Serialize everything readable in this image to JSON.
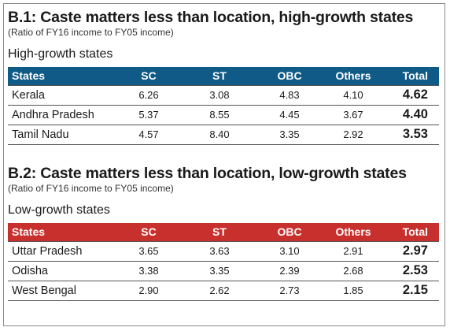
{
  "header_columns": [
    "States",
    "SC",
    "ST",
    "OBC",
    "Others",
    "Total"
  ],
  "section1": {
    "title": "B.1: Caste matters less than location, high-growth states",
    "subtitle": "(Ratio of FY16 income to FY05 income)",
    "group": "High-growth states",
    "header_color": "#0f5a86",
    "rows": [
      {
        "state": "Kerala",
        "sc": "6.26",
        "st": "3.08",
        "obc": "4.83",
        "others": "4.10",
        "total": "4.62"
      },
      {
        "state": "Andhra Pradesh",
        "sc": "5.37",
        "st": "8.55",
        "obc": "4.45",
        "others": "3.67",
        "total": "4.40"
      },
      {
        "state": "Tamil Nadu",
        "sc": "4.57",
        "st": "8.40",
        "obc": "3.35",
        "others": "2.92",
        "total": "3.53"
      }
    ]
  },
  "section2": {
    "title": "B.2: Caste matters less than location, low-growth states",
    "subtitle": "(Ratio of FY16 income to FY05 income)",
    "group": "Low-growth states",
    "header_color": "#c8302e",
    "rows": [
      {
        "state": "Uttar Pradesh",
        "sc": "3.65",
        "st": "3.63",
        "obc": "3.10",
        "others": "2.91",
        "total": "2.97"
      },
      {
        "state": "Odisha",
        "sc": "3.38",
        "st": "3.35",
        "obc": "2.39",
        "others": "2.68",
        "total": "2.53"
      },
      {
        "state": "West Bengal",
        "sc": "2.90",
        "st": "2.62",
        "obc": "2.73",
        "others": "1.85",
        "total": "2.15"
      }
    ]
  }
}
